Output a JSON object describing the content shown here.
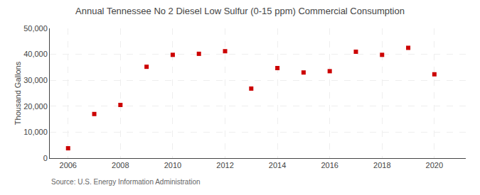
{
  "chart_data": {
    "type": "scatter",
    "title": "Annual Tennessee No 2 Diesel Low Sulfur (0-15 ppm) Commercial Consumption",
    "ylabel": "Thousand Gallons",
    "annotations": [
      "Source: U.S. Energy Information Administration"
    ],
    "x": [
      2006,
      2007,
      2008,
      2009,
      2010,
      2011,
      2012,
      2013,
      2014,
      2015,
      2016,
      2017,
      2018,
      2019,
      2020
    ],
    "values": [
      3800,
      17000,
      20500,
      35200,
      39800,
      40200,
      41200,
      26800,
      34700,
      33000,
      33500,
      41000,
      39800,
      42500,
      32300
    ],
    "color": "#cc0000",
    "marker": "square",
    "xlim": [
      2005.3,
      2021.2
    ],
    "xticks": [
      2006,
      2008,
      2010,
      2012,
      2014,
      2016,
      2018,
      2020
    ],
    "ylim": [
      0,
      50000
    ],
    "yticks": [
      0,
      {
        "value": 10000,
        "label": "10,000"
      },
      {
        "value": 20000,
        "label": "20,000"
      },
      {
        "value": 30000,
        "label": "30,000"
      },
      {
        "value": 40000,
        "label": "40,000"
      },
      {
        "value": 50000,
        "label": "50,000"
      }
    ],
    "grid": true
  }
}
